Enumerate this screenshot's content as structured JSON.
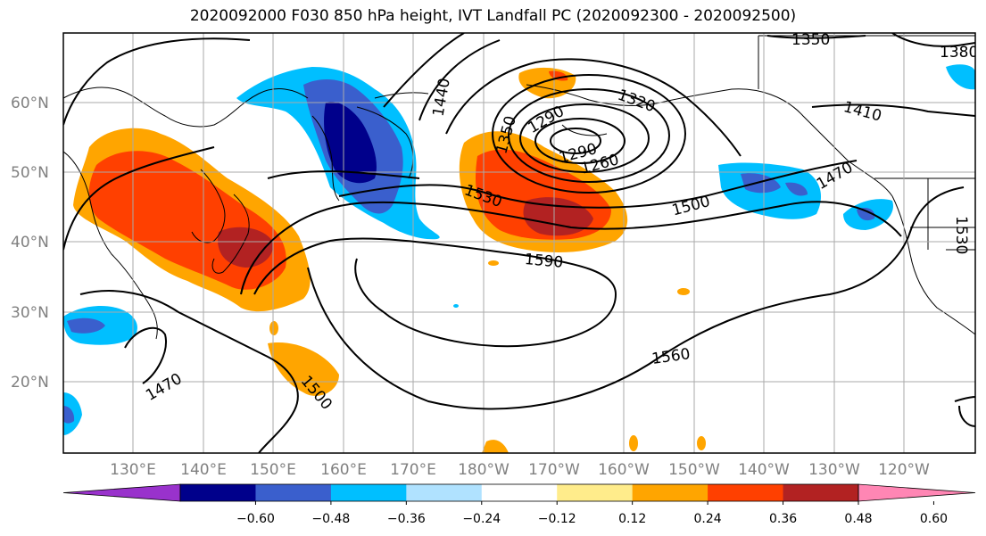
{
  "title": "2020092000 F030 850 hPa height, IVT Landfall PC (2020092300 - 2020092500)",
  "latitude_labels": [
    "60°N",
    "50°N",
    "40°N",
    "30°N",
    "20°N"
  ],
  "longitude_labels": [
    "130°E",
    "140°E",
    "150°E",
    "160°E",
    "170°E",
    "180°W",
    "170°W",
    "160°W",
    "150°W",
    "140°W",
    "130°W",
    "120°W"
  ],
  "colorbar": {
    "colors": [
      "#9932cc",
      "#00008b",
      "#3a5fcd",
      "#00bfff",
      "#b0e2ff",
      "#ffffff",
      "#ffec8b",
      "#ffa500",
      "#ff4000",
      "#b22222",
      "#ff86b4"
    ],
    "tick_labels": [
      "−0.60",
      "−0.48",
      "−0.36",
      "−0.24",
      "−0.12",
      "0.12",
      "0.24",
      "0.36",
      "0.48",
      "0.60"
    ]
  },
  "contour_labels": [
    "1350",
    "1380",
    "1440",
    "1320",
    "1290",
    "1350",
    "1260",
    "1290",
    "1410",
    "1470",
    "1530",
    "1500",
    "1590",
    "1560",
    "1470",
    "1500",
    "1530"
  ]
}
